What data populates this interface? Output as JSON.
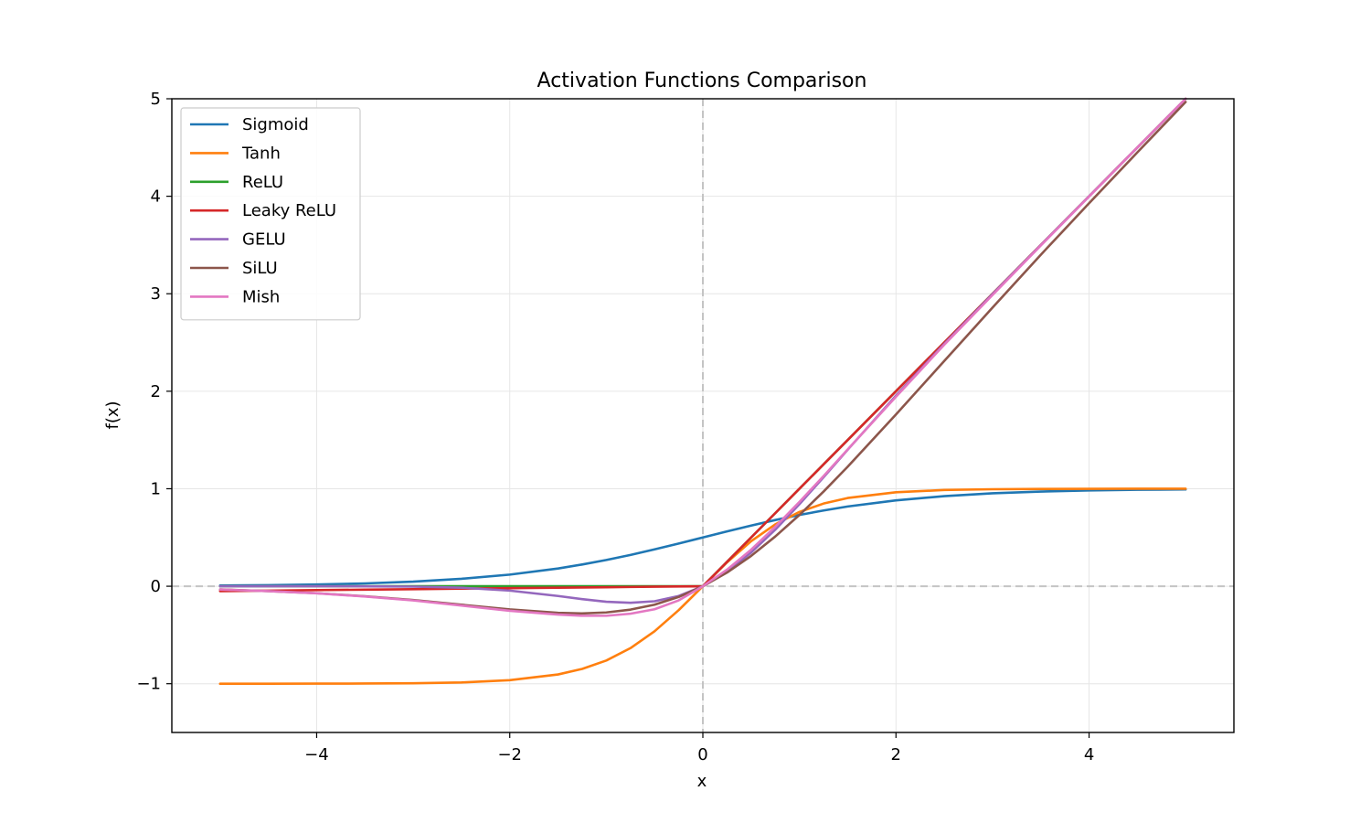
{
  "chart_data": {
    "type": "line",
    "title": "Activation Functions Comparison",
    "xlabel": "x",
    "ylabel": "f(x)",
    "xlim": [
      -5.5,
      5.5
    ],
    "ylim": [
      -1.5,
      5
    ],
    "xticks": [
      -4,
      -2,
      0,
      2,
      4
    ],
    "yticks": [
      -1,
      0,
      1,
      2,
      3,
      4,
      5
    ],
    "xtick_labels": [
      "−4",
      "−2",
      "0",
      "2",
      "4"
    ],
    "ytick_labels": [
      "−1",
      "0",
      "1",
      "2",
      "3",
      "4",
      "5"
    ],
    "grid": true,
    "reference_lines": {
      "x": 0,
      "y": 0,
      "style": "dashed"
    },
    "legend_position": "upper-left",
    "x": [
      -5,
      -4.5,
      -4,
      -3.5,
      -3,
      -2.5,
      -2,
      -1.5,
      -1.25,
      -1,
      -0.75,
      -0.5,
      -0.25,
      0,
      0.25,
      0.5,
      0.75,
      1,
      1.25,
      1.5,
      2,
      2.5,
      3,
      3.5,
      4,
      4.5,
      5
    ],
    "series": [
      {
        "name": "Sigmoid",
        "color": "#1f77b4",
        "values": [
          0.007,
          0.011,
          0.018,
          0.029,
          0.047,
          0.076,
          0.119,
          0.182,
          0.223,
          0.269,
          0.321,
          0.378,
          0.438,
          0.5,
          0.562,
          0.622,
          0.679,
          0.731,
          0.777,
          0.818,
          0.881,
          0.924,
          0.953,
          0.971,
          0.982,
          0.989,
          0.993
        ]
      },
      {
        "name": "Tanh",
        "color": "#ff7f0e",
        "values": [
          -1.0,
          -1.0,
          -0.999,
          -0.998,
          -0.995,
          -0.987,
          -0.964,
          -0.905,
          -0.848,
          -0.762,
          -0.635,
          -0.462,
          -0.245,
          0,
          0.245,
          0.462,
          0.635,
          0.762,
          0.848,
          0.905,
          0.964,
          0.987,
          0.995,
          0.998,
          0.999,
          1.0,
          1.0
        ]
      },
      {
        "name": "ReLU",
        "color": "#2ca02c",
        "values": [
          0,
          0,
          0,
          0,
          0,
          0,
          0,
          0,
          0,
          0,
          0,
          0,
          0,
          0,
          0.25,
          0.5,
          0.75,
          1,
          1.25,
          1.5,
          2,
          2.5,
          3,
          3.5,
          4,
          4.5,
          5
        ]
      },
      {
        "name": "Leaky ReLU",
        "color": "#d62728",
        "values": [
          -0.05,
          -0.045,
          -0.04,
          -0.035,
          -0.03,
          -0.025,
          -0.02,
          -0.015,
          -0.0125,
          -0.01,
          -0.0075,
          -0.005,
          -0.0025,
          0,
          0.25,
          0.5,
          0.75,
          1,
          1.25,
          1.5,
          2,
          2.5,
          3,
          3.5,
          4,
          4.5,
          5
        ]
      },
      {
        "name": "GELU",
        "color": "#9467bd",
        "values": [
          0,
          0,
          -0.0001,
          -0.0008,
          -0.004,
          -0.015,
          -0.045,
          -0.1,
          -0.132,
          -0.159,
          -0.17,
          -0.154,
          -0.1,
          0,
          0.15,
          0.346,
          0.58,
          0.841,
          1.118,
          1.4,
          1.955,
          2.485,
          2.996,
          3.499,
          4.0,
          4.5,
          5.0
        ]
      },
      {
        "name": "SiLU",
        "color": "#8c564b",
        "values": [
          -0.033,
          -0.05,
          -0.072,
          -0.103,
          -0.142,
          -0.19,
          -0.238,
          -0.273,
          -0.279,
          -0.269,
          -0.24,
          -0.189,
          -0.11,
          0,
          0.14,
          0.311,
          0.51,
          0.731,
          0.971,
          1.226,
          1.762,
          2.31,
          2.858,
          3.4,
          3.928,
          4.45,
          4.967
        ]
      },
      {
        "name": "Mish",
        "color": "#e377c2",
        "values": [
          -0.034,
          -0.05,
          -0.073,
          -0.105,
          -0.146,
          -0.198,
          -0.252,
          -0.291,
          -0.303,
          -0.303,
          -0.282,
          -0.236,
          -0.145,
          0,
          0.17,
          0.375,
          0.61,
          0.865,
          1.13,
          1.403,
          1.944,
          2.477,
          2.987,
          3.495,
          3.997,
          4.5,
          5.0
        ]
      }
    ]
  }
}
